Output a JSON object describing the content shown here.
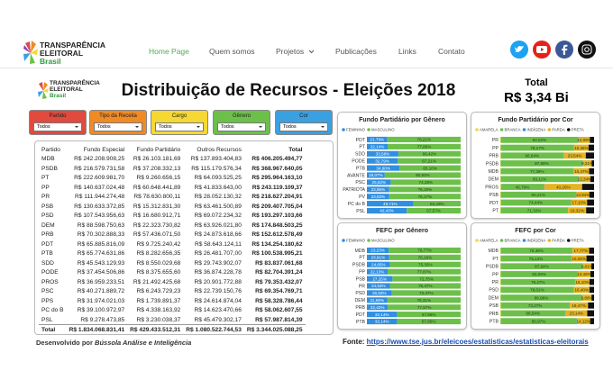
{
  "nav": {
    "brand": [
      "TRANSPARÊNCIA",
      "ELEITORAL",
      "Brasil"
    ],
    "links": [
      "Home Page",
      "Quem somos",
      "Projetos",
      "Publicações",
      "Links",
      "Contato"
    ]
  },
  "dashboard": {
    "brand": [
      "TRANSPARÊNCIA",
      "ELEITORAL",
      "Brasil"
    ],
    "title": "Distribuição de Recursos - Eleições 2018",
    "total_label": "Total",
    "total_value": "R$ 3,34 Bi",
    "filters": [
      {
        "label": "Partido",
        "value": "Todos",
        "color": "#e04a3f"
      },
      {
        "label": "Tipo da Receita",
        "value": "Todos",
        "color": "#f08a24"
      },
      {
        "label": "Cargo",
        "value": "Todos",
        "color": "#f5d833"
      },
      {
        "label": "Gênero",
        "value": "Todos",
        "color": "#6cc04a"
      },
      {
        "label": "Cor",
        "value": "Todos",
        "color": "#3aa0e0"
      }
    ],
    "table": {
      "columns": [
        "Partido",
        "Fundo Especial",
        "Fundo Partidário",
        "Outros Recursos",
        "Total"
      ],
      "rows": [
        [
          "MDB",
          "R$ 242.208.908,25",
          "R$ 26.103.181,69",
          "R$ 137.893.404,83",
          "R$ 406.205.494,77"
        ],
        [
          "PSDB",
          "R$ 216.579.731,58",
          "R$ 37.208.332,13",
          "R$ 115.179.576,34",
          "R$ 368.967.640,05"
        ],
        [
          "PT",
          "R$ 222.609.981,70",
          "R$ 9.260.656,15",
          "R$ 64.093.525,25",
          "R$ 295.964.163,10"
        ],
        [
          "PP",
          "R$ 140.637.024,48",
          "R$ 60.648.441,89",
          "R$ 41.833.643,00",
          "R$ 243.119.109,37"
        ],
        [
          "PR",
          "R$ 111.944.274,48",
          "R$ 78.630.800,11",
          "R$ 28.052.130,32",
          "R$ 218.627.204,91"
        ],
        [
          "PSB",
          "R$ 130.633.372,85",
          "R$ 15.312.831,30",
          "R$ 63.461.500,89",
          "R$ 209.407.705,04"
        ],
        [
          "PSD",
          "R$ 107.543.956,63",
          "R$ 16.680.912,71",
          "R$ 69.072.234,32",
          "R$ 193.297.103,66"
        ],
        [
          "DEM",
          "R$ 88.598.750,63",
          "R$ 22.323.730,82",
          "R$ 63.926.021,80",
          "R$ 174.848.503,25"
        ],
        [
          "PRB",
          "R$ 70.302.888,33",
          "R$ 57.436.071,50",
          "R$ 24.873.618,66",
          "R$ 152.612.578,49"
        ],
        [
          "PDT",
          "R$ 65.885.816,09",
          "R$ 9.725.240,42",
          "R$ 58.643.124,11",
          "R$ 134.254.180,62"
        ],
        [
          "PTB",
          "R$ 65.774.631,86",
          "R$ 8.282.656,35",
          "R$ 26.481.707,00",
          "R$ 100.538.995,21"
        ],
        [
          "SDD",
          "R$ 45.543.129,93",
          "R$ 8.550.029,68",
          "R$ 29.743.902,07",
          "R$ 83.837.061,68"
        ],
        [
          "PODE",
          "R$ 37.454.506,86",
          "R$ 8.375.655,60",
          "R$ 36.874.228,78",
          "R$ 82.704.391,24"
        ],
        [
          "PROS",
          "R$ 36.959.233,51",
          "R$ 21.492.425,68",
          "R$ 20.901.772,88",
          "R$ 79.353.432,07"
        ],
        [
          "PSC",
          "R$ 40.271.889,72",
          "R$ 6.243.729,23",
          "R$ 22.739.150,76",
          "R$ 69.354.769,71"
        ],
        [
          "PPS",
          "R$ 31.974.021,03",
          "R$ 1.739.891,37",
          "R$ 24.614.874,04",
          "R$ 58.328.786,44"
        ],
        [
          "PC do B",
          "R$ 39.100.972,97",
          "R$ 4.338.163,92",
          "R$ 14.623.470,66",
          "R$ 58.062.607,55"
        ],
        [
          "PSL",
          "R$ 9.278.473,85",
          "R$ 3.230.038,37",
          "R$ 45.479.302,17",
          "R$ 57.987.814,39"
        ]
      ],
      "total": [
        "Total",
        "R$ 1.834.068.831,41",
        "R$ 429.433.512,31",
        "R$ 1.080.522.744,53",
        "R$ 3.344.025.088,25"
      ]
    },
    "credit_prefix": "Desenvolvido por",
    "credit": "Bússola Análise e Inteligência",
    "source_label": "Fonte:",
    "source_url": "https://www.tse.jus.br/eleicoes/estatisticas/estatisticas-eleitorais"
  },
  "chart_data": [
    {
      "type": "bar",
      "orientation": "horizontal",
      "stacked": true,
      "title": "Fundo Partidário por Gênero",
      "xlim": [
        0,
        100
      ],
      "categories": [
        "PDT",
        "PT",
        "SDD",
        "PODE",
        "PTB",
        "AVANTE",
        "PSC",
        "PATRIOTA",
        "PV",
        "PC do B",
        "PSL"
      ],
      "series": [
        {
          "name": "FEMININO",
          "color": "#2f8fe0",
          "values": [
            21.79,
            22.14,
            33.58,
            32.79,
            34.9,
            19.07,
            25.62,
            23.85,
            23.83,
            49.71,
            42.43
          ],
          "value_labels": [
            "21,79%",
            "22,14%",
            "33,58%",
            "32,79%",
            "34,90%",
            "19,07%",
            "25,62%",
            "23,85%",
            "23,83%",
            "49,71%",
            "42,43%"
          ]
        },
        {
          "name": "MASCULINO",
          "color": "#6cc04a",
          "values": [
            78.21,
            77.86,
            66.42,
            67.21,
            65.1,
            80.93,
            74.38,
            76.15,
            76.17,
            50.29,
            57.57
          ],
          "value_labels": [
            "78,21%",
            "77,86%",
            "66,42%",
            "67,21%",
            "65,10%",
            "80,93%",
            "74,38%",
            "76,15%",
            "76,17%",
            "50,29%",
            "57,57%"
          ]
        }
      ]
    },
    {
      "type": "bar",
      "orientation": "horizontal",
      "stacked": true,
      "title": "Fundo Partidário por Cor",
      "xlim": [
        0,
        100
      ],
      "categories": [
        "PR",
        "PP",
        "PRB",
        "PSDB",
        "MDB",
        "DEM",
        "PROS",
        "PSB",
        "PDT",
        "PT"
      ],
      "series": [
        {
          "name": "AMARELA",
          "color": "#f5d547",
          "values": [
            0.5,
            0.4,
            0.6,
            0.3,
            0.5,
            0.4,
            0.7,
            0.5,
            0.6,
            0.5
          ]
        },
        {
          "name": "BRANCA",
          "color": "#6cc04a",
          "values": [
            82.62,
            78.17,
            66.64,
            87.69,
            77.39,
            83.11,
            45.79,
            80.21,
            74.44,
            71.32
          ],
          "value_labels": [
            "82,62%",
            "78,17%",
            "66,64%",
            "87,69%",
            "77,39%",
            "83,11%",
            "45,79%",
            "80,21%",
            "74,44%",
            "71,32%"
          ]
        },
        {
          "name": "INDÍGENA",
          "color": "#2f8fe0",
          "values": [
            0.3,
            0.2,
            0.4,
            0.2,
            0.3,
            0.2,
            0.5,
            0.3,
            0.4,
            0.4
          ]
        },
        {
          "name": "PARDA",
          "color": "#e6b422",
          "values": [
            12.09,
            15.36,
            23.54,
            9.21,
            16.47,
            12.34,
            40.26,
            13.94,
            17.1,
            19.32
          ],
          "value_labels": [
            "12,09%",
            "15,36%",
            "23,54%",
            "9,21%",
            "16,47%",
            "12,34%",
            "40,26%",
            "13,94%",
            "17,10%",
            "19,32%"
          ]
        },
        {
          "name": "PRETA",
          "color": "#111111",
          "values": [
            4.49,
            5.87,
            8.82,
            2.6,
            5.34,
            3.95,
            12.75,
            5.05,
            7.46,
            8.46
          ]
        }
      ]
    },
    {
      "type": "bar",
      "orientation": "horizontal",
      "stacked": true,
      "title": "FEFC por Gênero",
      "xlim": [
        0,
        100
      ],
      "categories": [
        "MDB",
        "PT",
        "PSDB",
        "PP",
        "PSB",
        "PR",
        "PSD",
        "DEM",
        "PRB",
        "PDT",
        "PTB"
      ],
      "series": [
        {
          "name": "FEMININO",
          "color": "#2f8fe0",
          "values": [
            23.23,
            23.81,
            24.65,
            22.13,
            27.25,
            24.53,
            26.53,
            21.69,
            22.43,
            32.14,
            32.14
          ],
          "value_labels": [
            "23,23%",
            "23,81%",
            "24,65%",
            "22,13%",
            "27,25%",
            "24,53%",
            "26,53%",
            "21,69%",
            "22,43%",
            "32,14%",
            "32,14%"
          ]
        },
        {
          "name": "MASCULINO",
          "color": "#6cc04a",
          "values": [
            76.77,
            76.19,
            75.35,
            77.87,
            72.75,
            75.47,
            73.47,
            78.31,
            77.57,
            67.86,
            67.86
          ],
          "value_labels": [
            "76,77%",
            "76,19%",
            "75,35%",
            "77,87%",
            "72,75%",
            "75,47%",
            "73,47%",
            "78,31%",
            "77,57%",
            "67,86%",
            "67,86%"
          ]
        }
      ]
    },
    {
      "type": "bar",
      "orientation": "horizontal",
      "stacked": true,
      "title": "FEFC por Cor",
      "xlim": [
        0,
        100
      ],
      "categories": [
        "MDB",
        "PT",
        "PSDB",
        "PP",
        "PR",
        "PSD",
        "DEM",
        "PSB",
        "PRB",
        "PTB"
      ],
      "series": [
        {
          "name": "AMARELA",
          "color": "#f5d547",
          "values": [
            0.4,
            0.5,
            0.3,
            0.4,
            0.5,
            0.4,
            0.3,
            0.5,
            0.6,
            0.4
          ]
        },
        {
          "name": "BRANCA",
          "color": "#6cc04a",
          "values": [
            76.36,
            75.12,
            87.64,
            82.06,
            79.27,
            78.01,
            86.96,
            73.27,
            68.54,
            80.97
          ],
          "value_labels": [
            "76,36%",
            "75,12%",
            "87,64%",
            "82,06%",
            "79,27%",
            "78,01%",
            "86,96%",
            "73,27%",
            "68,54%",
            "80,97%"
          ]
        },
        {
          "name": "INDÍGENA",
          "color": "#2f8fe0",
          "values": [
            0.2,
            0.3,
            0.2,
            0.2,
            0.3,
            0.2,
            0.2,
            0.3,
            0.4,
            0.3
          ]
        },
        {
          "name": "PARDA",
          "color": "#e6b422",
          "values": [
            17.77,
            16.0,
            9.01,
            13.46,
            15.1,
            16.4,
            9.86,
            19.47,
            23.14,
            14.12
          ],
          "value_labels": [
            "17,77%",
            "16,00%",
            "9,01%",
            "13,46%",
            "15,10%",
            "16,40%",
            "9,86%",
            "19,47%",
            "23,14%",
            "14,12%"
          ]
        },
        {
          "name": "PRETA",
          "color": "#111111",
          "values": [
            5.27,
            8.08,
            2.85,
            3.88,
            4.83,
            4.99,
            2.68,
            6.46,
            7.32,
            4.21
          ]
        }
      ]
    }
  ]
}
